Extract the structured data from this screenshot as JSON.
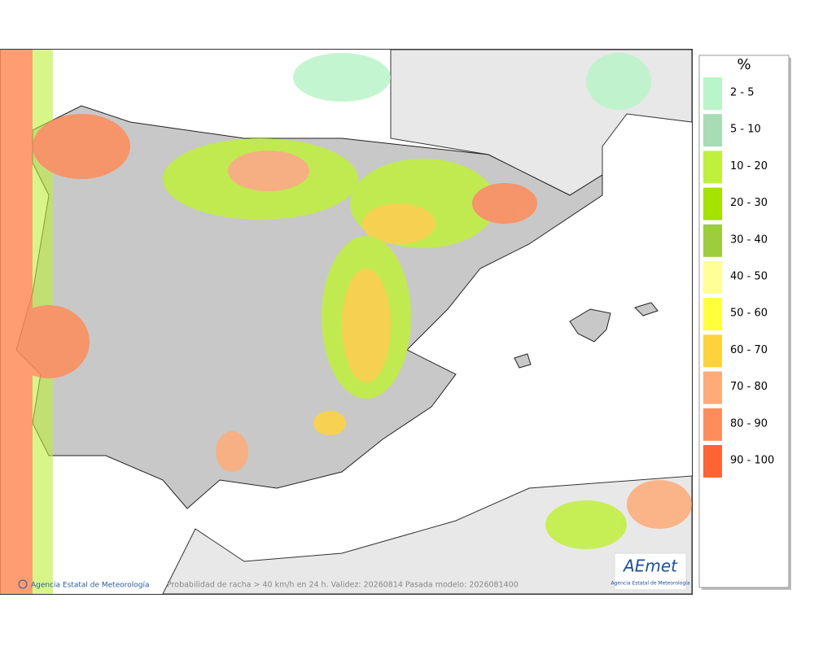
{
  "legend": {
    "title": "%",
    "items": [
      {
        "label": "2 - 5",
        "color": "#b9f5c8"
      },
      {
        "label": "5 - 10",
        "color": "#a8dcb4"
      },
      {
        "label": "10 - 20",
        "color": "#bff03c"
      },
      {
        "label": "20 - 30",
        "color": "#a4e200"
      },
      {
        "label": "30 - 40",
        "color": "#9ccd3c"
      },
      {
        "label": "40 - 50",
        "color": "#ffff96"
      },
      {
        "label": "50 - 60",
        "color": "#ffff3c"
      },
      {
        "label": "60 - 70",
        "color": "#ffd23c"
      },
      {
        "label": "70 - 80",
        "color": "#ffaa78"
      },
      {
        "label": "80 - 90",
        "color": "#ff8c5a"
      },
      {
        "label": "90 - 100",
        "color": "#ff6432"
      }
    ]
  },
  "footer": {
    "agency": "Agencia Estatal de Meteorología",
    "caption": "Probabilidad de racha > 40 km/h en 24 h. Validez: 20260814 Pasada modelo: 2026081400"
  },
  "logo": {
    "name": "AEmet",
    "subtitle": "Agencia Estatal de Meteorología"
  }
}
